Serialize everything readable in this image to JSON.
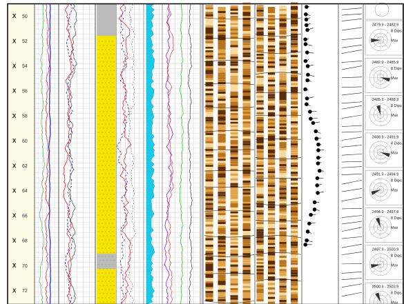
{
  "depth_track": {
    "marks": [
      {
        "well": "X",
        "depth": "50"
      },
      {
        "well": "X",
        "depth": "52"
      },
      {
        "well": "X",
        "depth": "54"
      },
      {
        "well": "X",
        "depth": "56"
      },
      {
        "well": "X",
        "depth": "58"
      },
      {
        "well": "X",
        "depth": "60"
      },
      {
        "well": "X",
        "depth": "62"
      },
      {
        "well": "X",
        "depth": "64"
      },
      {
        "well": "X",
        "depth": "66"
      },
      {
        "well": "X",
        "depth": "68"
      },
      {
        "well": "X",
        "depth": "70"
      },
      {
        "well": "X",
        "depth": "72"
      }
    ]
  },
  "rose_track": {
    "panels": [
      {
        "interval": "2479.9 - 2482.9",
        "count": "8 Dips",
        "max": "Max"
      },
      {
        "interval": "2482.9 - 2485.9",
        "count": "8 Dips",
        "max": "Max"
      },
      {
        "interval": "2485.9 - 2488.9",
        "count": "8 Dips",
        "max": "Max"
      },
      {
        "interval": "2488.9 - 2491.9",
        "count": "8 Dips",
        "max": "Max"
      },
      {
        "interval": "2491.9 - 2494.9",
        "count": "8 Dips",
        "max": "Max"
      },
      {
        "interval": "2494.9 - 2497.9",
        "count": "8 Dips",
        "max": "Max"
      },
      {
        "interval": "2497.9 - 2500.9",
        "count": "8 Dips",
        "max": "Max"
      },
      {
        "interval": "2500.9 - 2503.9",
        "count": "8 Dips",
        "max": "Max"
      }
    ]
  }
}
